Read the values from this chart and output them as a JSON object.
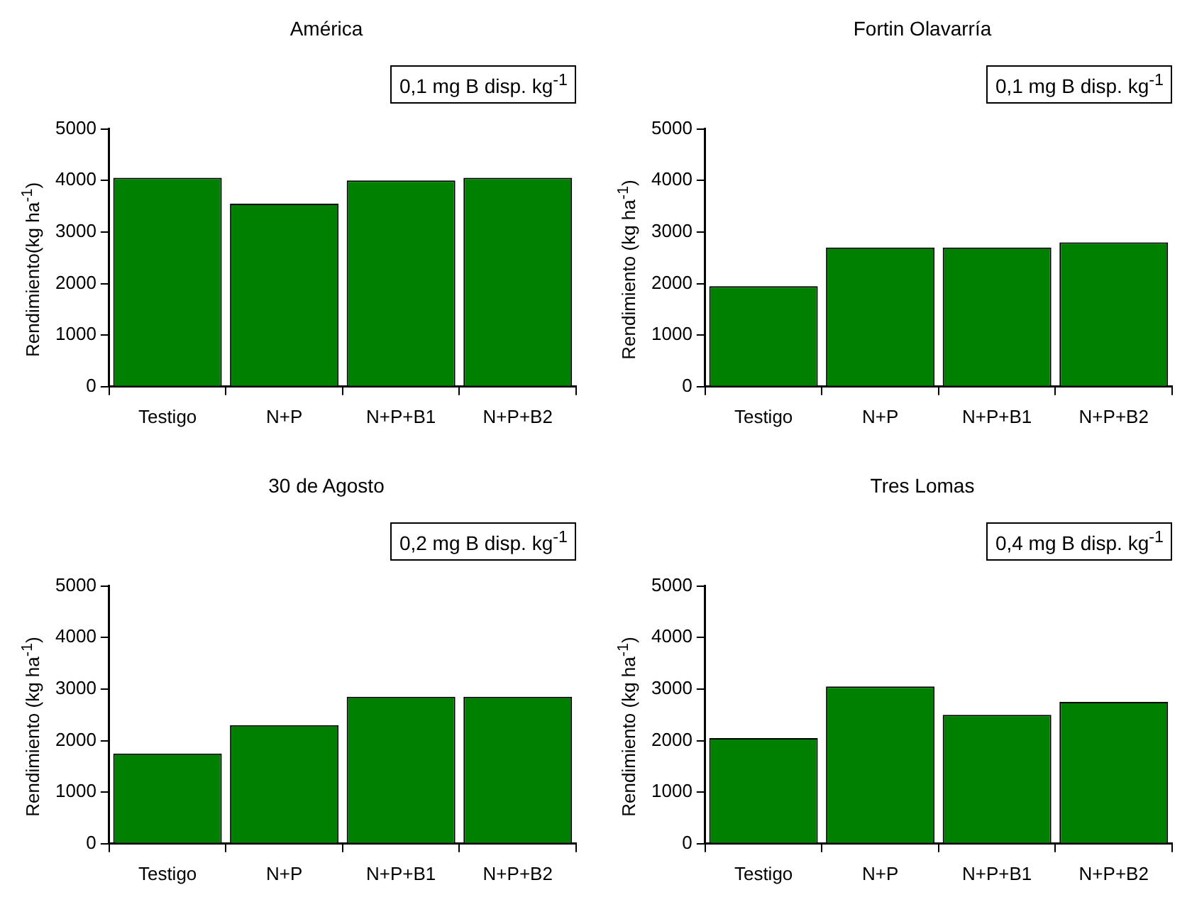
{
  "chart_data": [
    {
      "type": "bar",
      "title": "América",
      "ylabel": "Rendimiento(kg ha$^{-1}$)",
      "categories": [
        "Testigo",
        "N+P",
        "N+P+B1",
        "N+P+B2"
      ],
      "values": [
        4050,
        3550,
        4000,
        4050
      ],
      "color": "#008000",
      "ylim": [
        0,
        5000
      ],
      "yticks": [
        0,
        1000,
        2000,
        3000,
        4000,
        5000
      ],
      "annotations": [
        "0,1 mg B disp. kg$^{-1}$"
      ]
    },
    {
      "type": "bar",
      "title": "Fortin Olavarría",
      "ylabel": "Rendimiento (kg ha$^{-1}$)",
      "categories": [
        "Testigo",
        "N+P",
        "N+P+B1",
        "N+P+B2"
      ],
      "values": [
        1950,
        2700,
        2700,
        2800
      ],
      "color": "#008000",
      "ylim": [
        0,
        5000
      ],
      "yticks": [
        0,
        1000,
        2000,
        3000,
        4000,
        5000
      ],
      "annotations": [
        "0,1 mg B disp. kg$^{-1}$"
      ]
    },
    {
      "type": "bar",
      "title": "30 de Agosto",
      "ylabel": "Rendimiento  (kg ha$^{-1}$)",
      "categories": [
        "Testigo",
        "N+P",
        "N+P+B1",
        "N+P+B2"
      ],
      "values": [
        1750,
        2300,
        2850,
        2850
      ],
      "color": "#008000",
      "ylim": [
        0,
        5000
      ],
      "yticks": [
        0,
        1000,
        2000,
        3000,
        4000,
        5000
      ],
      "annotations": [
        "0,2 mg B disp. kg$^{-1}$"
      ]
    },
    {
      "type": "bar",
      "title": "Tres Lomas",
      "ylabel": "Rendimiento  (kg ha$^{-1}$)",
      "categories": [
        "Testigo",
        "N+P",
        "N+P+B1",
        "N+P+B2"
      ],
      "values": [
        2050,
        3050,
        2500,
        2750
      ],
      "color": "#008000",
      "ylim": [
        0,
        5000
      ],
      "yticks": [
        0,
        1000,
        2000,
        3000,
        4000,
        5000
      ],
      "annotations": [
        "0,4 mg B disp. kg$^{-1}$"
      ]
    }
  ]
}
